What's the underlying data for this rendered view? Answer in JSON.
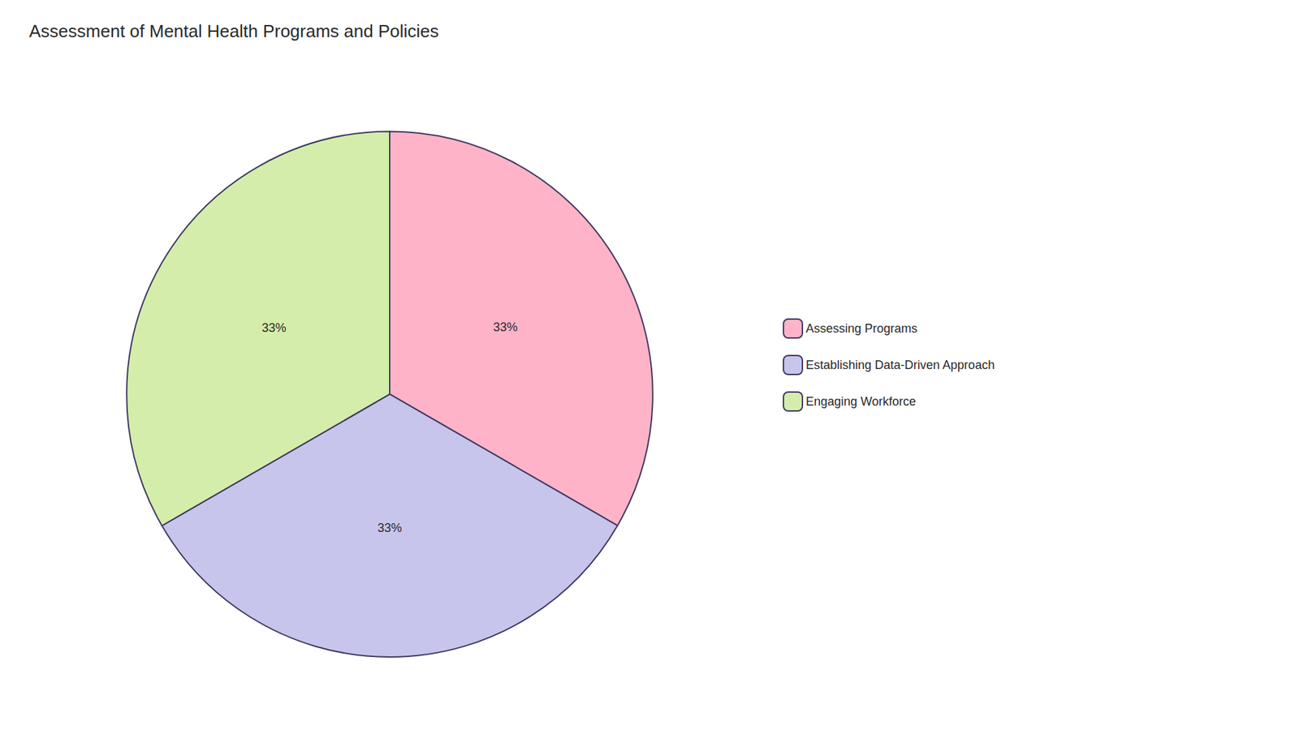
{
  "chart_data": {
    "type": "pie",
    "title": "Assessment of Mental Health Programs and Policies",
    "categories": [
      "Assessing Programs",
      "Establishing Data-Driven Approach",
      "Engaging Workforce"
    ],
    "values": [
      33.33,
      33.33,
      33.34
    ],
    "value_labels": [
      "33%",
      "33%",
      "33%"
    ],
    "colors": [
      "#FFB3C8",
      "#C8C5EC",
      "#D5EDAA"
    ],
    "data_labels": true,
    "legend": "right"
  }
}
